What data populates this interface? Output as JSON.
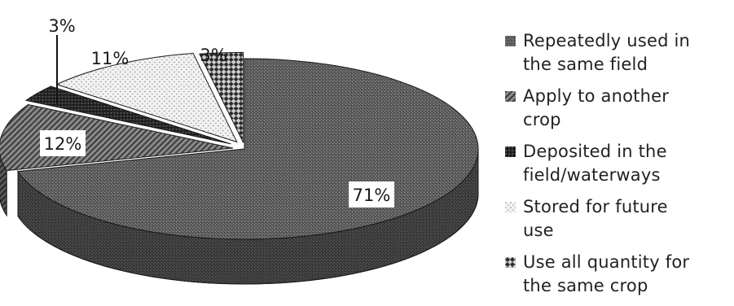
{
  "chart_data": {
    "type": "pie",
    "style": "3d-exploded",
    "categories": [
      "Repeatedly used in the same field",
      "Apply to another crop",
      "Deposited in the field/waterways",
      "Stored for future use",
      "Use all quantity for the same crop"
    ],
    "legend_lines": [
      [
        "Repeatedly used in",
        "the same field"
      ],
      [
        "Apply to another",
        "crop"
      ],
      [
        "Deposited in the",
        "field/waterways"
      ],
      [
        "Stored for future",
        "use"
      ],
      [
        "Use all quantity for",
        "the same crop"
      ]
    ],
    "values": [
      71,
      12,
      3,
      11,
      3
    ],
    "data_labels": [
      "71%",
      "12%",
      "3%",
      "11%",
      "3%"
    ],
    "legend_position": "right",
    "colors": [
      "#4a4a4a",
      "#6e6e6e",
      "#2a2a2a",
      "#d8d8d8",
      "#3a3a3a"
    ]
  }
}
